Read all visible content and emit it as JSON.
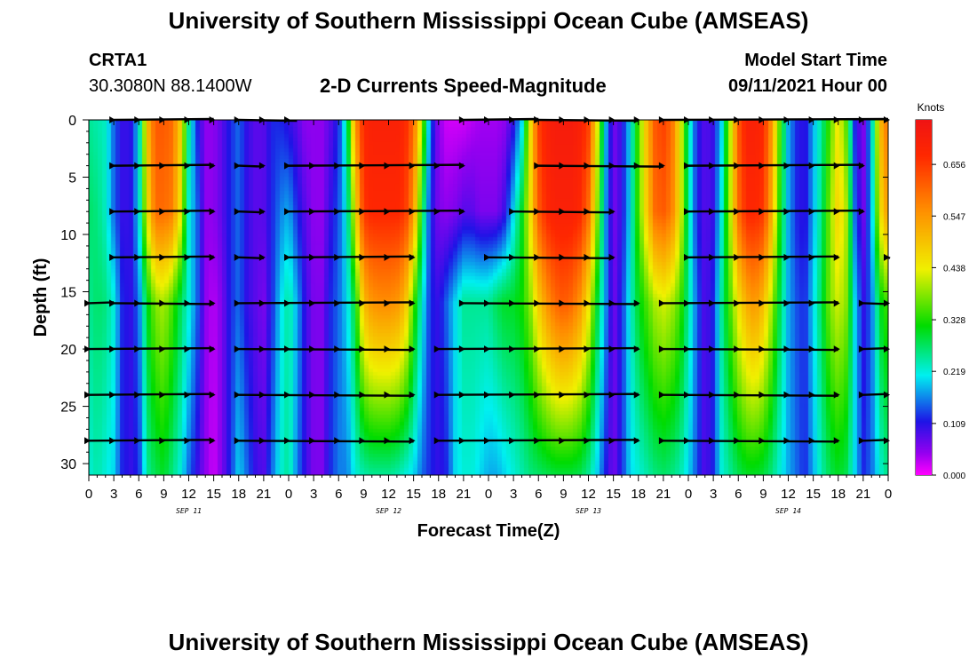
{
  "title_top": "University of Southern Mississippi Ocean Cube (AMSEAS)",
  "title_bottom": "University of Southern Mississippi Ocean Cube (AMSEAS)",
  "station": {
    "name": "CRTA1",
    "coords": "30.3080N  88.1400W"
  },
  "model_start": {
    "label": "Model Start Time",
    "value": "09/11/2021 Hour 00"
  },
  "chart_data": {
    "type": "heatmap",
    "title": "2-D Currents Speed-Magnitude",
    "xlabel": "Forecast Time(Z)",
    "ylabel": "Depth (ft)",
    "x_range_hours": [
      0,
      96
    ],
    "y_range_ft": [
      0,
      31
    ],
    "y_inverted": true,
    "x_tick_labels": [
      "0",
      "3",
      "6",
      "9",
      "12",
      "15",
      "18",
      "21",
      "0",
      "3",
      "6",
      "9",
      "12",
      "15",
      "18",
      "21",
      "0",
      "3",
      "6",
      "9",
      "12",
      "15",
      "18",
      "21",
      "0",
      "3",
      "6",
      "9",
      "12",
      "15",
      "18",
      "21",
      "0"
    ],
    "x_tick_hours": [
      0,
      3,
      6,
      9,
      12,
      15,
      18,
      21,
      24,
      27,
      30,
      33,
      36,
      39,
      42,
      45,
      48,
      51,
      54,
      57,
      60,
      63,
      66,
      69,
      72,
      75,
      78,
      81,
      84,
      87,
      90,
      93,
      96
    ],
    "y_ticks": [
      "0",
      "5",
      "10",
      "15",
      "20",
      "25",
      "30"
    ],
    "y_tick_values": [
      0,
      5,
      10,
      15,
      20,
      25,
      30
    ],
    "day_labels": [
      "SEP 11",
      "SEP 12",
      "SEP 13",
      "SEP 14"
    ],
    "day_label_hours": [
      12,
      36,
      60,
      84
    ],
    "colorbar": {
      "unit": "Knots",
      "ticks": [
        "0.656",
        "0.547",
        "0.438",
        "0.328",
        "0.219",
        "0.109",
        "0.000"
      ],
      "tick_values": [
        0.656,
        0.547,
        0.438,
        0.328,
        0.219,
        0.109,
        0.0
      ],
      "range": [
        0.0,
        0.75
      ]
    },
    "speed_columns": {
      "hours": [
        0,
        1,
        2,
        3,
        4,
        5,
        6,
        7,
        8,
        9,
        10,
        11,
        12,
        13,
        14,
        15,
        16,
        17,
        18,
        19,
        20,
        21,
        22,
        23,
        24,
        25,
        26,
        27,
        28,
        29,
        30,
        31,
        32,
        33,
        34,
        35,
        36,
        37,
        38,
        39,
        40,
        41,
        42,
        43,
        44,
        45,
        46,
        47,
        48,
        49,
        50,
        51,
        52,
        53,
        54,
        55,
        56,
        57,
        58,
        59,
        60,
        61,
        62,
        63,
        64,
        65,
        66,
        67,
        68,
        69,
        70,
        71,
        72,
        73,
        74,
        75,
        76,
        77,
        78,
        79,
        80,
        81,
        82,
        83,
        84,
        85,
        86,
        87,
        88,
        89,
        90,
        91,
        92,
        93,
        94,
        95,
        96
      ],
      "depths_ft": [
        0,
        8,
        16,
        31
      ],
      "speed_knots": [
        [
          0.25,
          0.27,
          0.25,
          0.22
        ],
        [
          0.24,
          0.26,
          0.27,
          0.24
        ],
        [
          0.23,
          0.23,
          0.26,
          0.22
        ],
        [
          0.15,
          0.15,
          0.22,
          0.2
        ],
        [
          0.1,
          0.1,
          0.12,
          0.12
        ],
        [
          0.1,
          0.1,
          0.1,
          0.1
        ],
        [
          0.2,
          0.2,
          0.15,
          0.12
        ],
        [
          0.5,
          0.45,
          0.3,
          0.25
        ],
        [
          0.62,
          0.6,
          0.38,
          0.28
        ],
        [
          0.62,
          0.6,
          0.4,
          0.3
        ],
        [
          0.6,
          0.58,
          0.35,
          0.26
        ],
        [
          0.48,
          0.45,
          0.28,
          0.22
        ],
        [
          0.25,
          0.22,
          0.22,
          0.15
        ],
        [
          0.12,
          0.15,
          0.15,
          0.1
        ],
        [
          0.05,
          0.05,
          0.05,
          0.05
        ],
        [
          0.05,
          0.05,
          0.03,
          0.02
        ],
        [
          0.08,
          0.08,
          0.06,
          0.06
        ],
        [
          0.12,
          0.12,
          0.12,
          0.12
        ],
        [
          0.15,
          0.15,
          0.15,
          0.2
        ],
        [
          0.1,
          0.1,
          0.1,
          0.15
        ],
        [
          0.08,
          0.08,
          0.08,
          0.1
        ],
        [
          0.08,
          0.08,
          0.06,
          0.08
        ],
        [
          0.12,
          0.12,
          0.12,
          0.15
        ],
        [
          0.12,
          0.16,
          0.2,
          0.22
        ],
        [
          0.1,
          0.18,
          0.25,
          0.25
        ],
        [
          0.08,
          0.12,
          0.18,
          0.16
        ],
        [
          0.05,
          0.08,
          0.1,
          0.1
        ],
        [
          0.05,
          0.05,
          0.06,
          0.06
        ],
        [
          0.05,
          0.05,
          0.06,
          0.06
        ],
        [
          0.08,
          0.1,
          0.12,
          0.12
        ],
        [
          0.12,
          0.14,
          0.15,
          0.16
        ],
        [
          0.25,
          0.22,
          0.2,
          0.16
        ],
        [
          0.55,
          0.45,
          0.3,
          0.22
        ],
        [
          0.68,
          0.66,
          0.5,
          0.24
        ],
        [
          0.7,
          0.68,
          0.55,
          0.25
        ],
        [
          0.7,
          0.68,
          0.56,
          0.25
        ],
        [
          0.7,
          0.68,
          0.56,
          0.25
        ],
        [
          0.7,
          0.68,
          0.55,
          0.24
        ],
        [
          0.68,
          0.66,
          0.5,
          0.22
        ],
        [
          0.6,
          0.55,
          0.35,
          0.2
        ],
        [
          0.4,
          0.3,
          0.22,
          0.15
        ],
        [
          0.15,
          0.12,
          0.12,
          0.12
        ],
        [
          0.05,
          0.06,
          0.1,
          0.1
        ],
        [
          0.02,
          0.05,
          0.15,
          0.12
        ],
        [
          0.02,
          0.06,
          0.2,
          0.2
        ],
        [
          0.02,
          0.08,
          0.25,
          0.22
        ],
        [
          0.03,
          0.08,
          0.25,
          0.22
        ],
        [
          0.04,
          0.06,
          0.25,
          0.2
        ],
        [
          0.04,
          0.06,
          0.25,
          0.18
        ],
        [
          0.04,
          0.06,
          0.28,
          0.18
        ],
        [
          0.05,
          0.1,
          0.3,
          0.2
        ],
        [
          0.1,
          0.2,
          0.3,
          0.22
        ],
        [
          0.2,
          0.3,
          0.32,
          0.24
        ],
        [
          0.45,
          0.45,
          0.38,
          0.26
        ],
        [
          0.65,
          0.62,
          0.48,
          0.27
        ],
        [
          0.7,
          0.68,
          0.55,
          0.28
        ],
        [
          0.72,
          0.7,
          0.6,
          0.29
        ],
        [
          0.72,
          0.7,
          0.62,
          0.29
        ],
        [
          0.72,
          0.7,
          0.6,
          0.29
        ],
        [
          0.7,
          0.68,
          0.55,
          0.28
        ],
        [
          0.65,
          0.6,
          0.45,
          0.25
        ],
        [
          0.45,
          0.4,
          0.3,
          0.2
        ],
        [
          0.2,
          0.18,
          0.18,
          0.12
        ],
        [
          0.06,
          0.06,
          0.06,
          0.06
        ],
        [
          0.1,
          0.1,
          0.12,
          0.12
        ],
        [
          0.2,
          0.2,
          0.22,
          0.2
        ],
        [
          0.35,
          0.35,
          0.3,
          0.22
        ],
        [
          0.5,
          0.48,
          0.35,
          0.24
        ],
        [
          0.62,
          0.6,
          0.4,
          0.26
        ],
        [
          0.65,
          0.62,
          0.42,
          0.27
        ],
        [
          0.6,
          0.58,
          0.4,
          0.26
        ],
        [
          0.45,
          0.45,
          0.35,
          0.24
        ],
        [
          0.25,
          0.25,
          0.25,
          0.2
        ],
        [
          0.12,
          0.12,
          0.15,
          0.14
        ],
        [
          0.08,
          0.08,
          0.08,
          0.08
        ],
        [
          0.1,
          0.1,
          0.12,
          0.12
        ],
        [
          0.2,
          0.22,
          0.25,
          0.22
        ],
        [
          0.4,
          0.4,
          0.35,
          0.25
        ],
        [
          0.62,
          0.6,
          0.45,
          0.28
        ],
        [
          0.7,
          0.68,
          0.52,
          0.3
        ],
        [
          0.7,
          0.68,
          0.55,
          0.3
        ],
        [
          0.68,
          0.66,
          0.5,
          0.29
        ],
        [
          0.55,
          0.52,
          0.4,
          0.26
        ],
        [
          0.35,
          0.32,
          0.28,
          0.22
        ],
        [
          0.18,
          0.18,
          0.18,
          0.18
        ],
        [
          0.12,
          0.12,
          0.14,
          0.15
        ],
        [
          0.1,
          0.1,
          0.12,
          0.12
        ],
        [
          0.18,
          0.18,
          0.2,
          0.18
        ],
        [
          0.25,
          0.26,
          0.28,
          0.24
        ],
        [
          0.35,
          0.38,
          0.38,
          0.28
        ],
        [
          0.45,
          0.48,
          0.42,
          0.3
        ],
        [
          0.35,
          0.4,
          0.38,
          0.28
        ],
        [
          0.12,
          0.15,
          0.2,
          0.2
        ],
        [
          0.05,
          0.06,
          0.1,
          0.12
        ],
        [
          0.2,
          0.18,
          0.15,
          0.15
        ],
        [
          0.5,
          0.45,
          0.3,
          0.22
        ],
        [
          0.6,
          0.55,
          0.35,
          0.26
        ]
      ]
    },
    "vector_rows_ft": [
      0,
      4,
      8,
      12,
      16,
      20,
      24,
      28
    ],
    "vector_segments": [
      {
        "depth_ft": 0,
        "start_hours": [
          3,
          18,
          45,
          54,
          69
        ],
        "end_hours": [
          15,
          25,
          54,
          66,
          96
        ]
      },
      {
        "depth_ft": 4,
        "start_hours": [
          3,
          18,
          24,
          54,
          72
        ],
        "end_hours": [
          15,
          21,
          45,
          69,
          93
        ]
      },
      {
        "depth_ft": 8,
        "start_hours": [
          3,
          18,
          24,
          51,
          72
        ],
        "end_hours": [
          15,
          21,
          45,
          63,
          93
        ]
      },
      {
        "depth_ft": 12,
        "start_hours": [
          3,
          18,
          24,
          48,
          72,
          96
        ],
        "end_hours": [
          15,
          21,
          39,
          63,
          90,
          96
        ]
      },
      {
        "depth_ft": 16,
        "start_hours": [
          0,
          3,
          18,
          45,
          69,
          93
        ],
        "end_hours": [
          3,
          15,
          39,
          66,
          90,
          96
        ]
      },
      {
        "depth_ft": 20,
        "start_hours": [
          0,
          18,
          42,
          69,
          93
        ],
        "end_hours": [
          15,
          39,
          66,
          90,
          96
        ]
      },
      {
        "depth_ft": 24,
        "start_hours": [
          0,
          18,
          42,
          69,
          93
        ],
        "end_hours": [
          15,
          39,
          66,
          90,
          96
        ]
      },
      {
        "depth_ft": 28,
        "start_hours": [
          0,
          18,
          42,
          69,
          93
        ],
        "end_hours": [
          15,
          39,
          66,
          90,
          96
        ]
      }
    ]
  }
}
